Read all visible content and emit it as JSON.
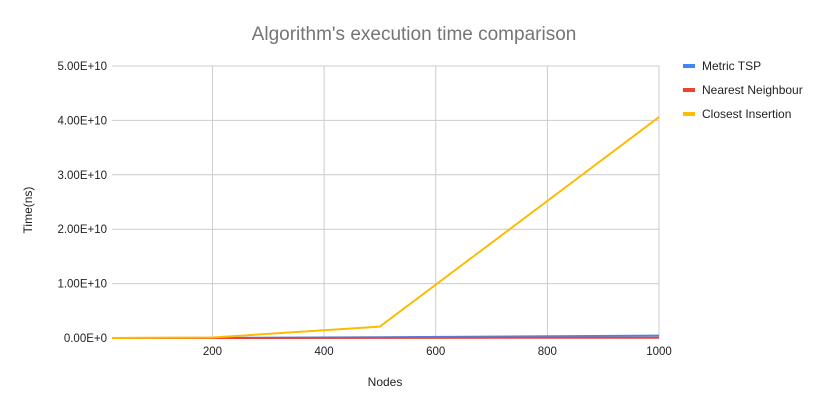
{
  "chart_data": {
    "type": "line",
    "title": "Algorithm's execution time comparison",
    "xlabel": "Nodes",
    "ylabel": "Time(ns)",
    "xlim": [
      20,
      1000
    ],
    "ylim": [
      0,
      50000000000
    ],
    "x_ticks": [
      "200",
      "400",
      "600",
      "800",
      "1000"
    ],
    "y_ticks": [
      "0.00E+0",
      "1.00E+10",
      "2.00E+10",
      "3.00E+10",
      "4.00E+10",
      "5.00E+10"
    ],
    "grid": true,
    "legend_position": "right",
    "series": [
      {
        "name": "Metric TSP",
        "color": "#4285F4",
        "points": [
          [
            20,
            0
          ],
          [
            200,
            20000000
          ],
          [
            500,
            120000000
          ],
          [
            1000,
            450000000
          ]
        ]
      },
      {
        "name": "Nearest Neighbour",
        "color": "#EA4335",
        "points": [
          [
            20,
            0
          ],
          [
            200,
            3000000
          ],
          [
            500,
            15000000
          ],
          [
            1000,
            60000000
          ]
        ]
      },
      {
        "name": "Closest Insertion",
        "color": "#FBBC04",
        "points": [
          [
            20,
            0
          ],
          [
            200,
            100000000
          ],
          [
            500,
            2100000000
          ],
          [
            1000,
            40600000000
          ]
        ]
      }
    ]
  }
}
